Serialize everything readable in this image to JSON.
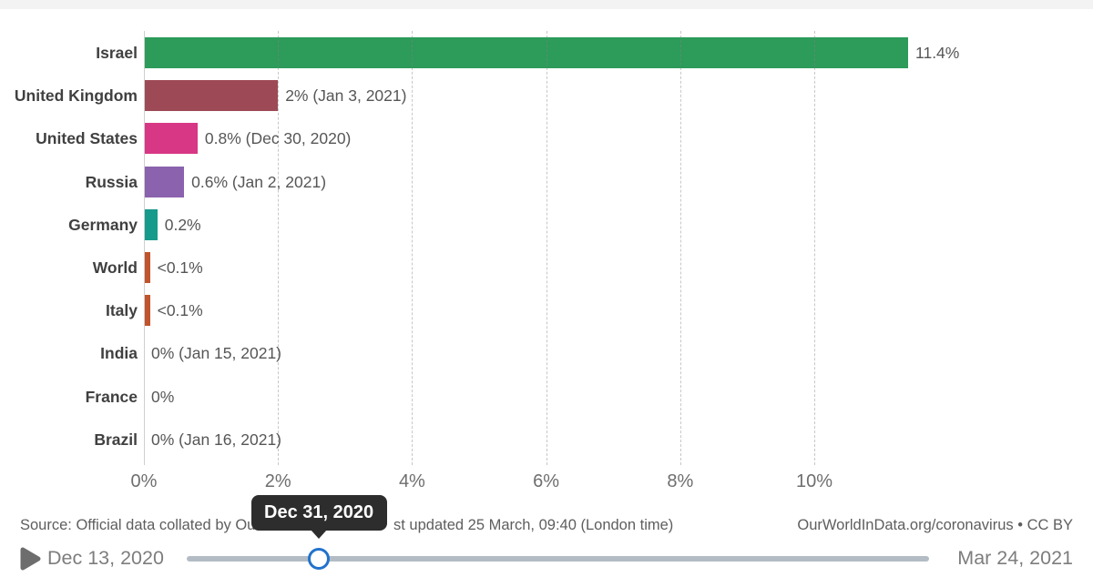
{
  "chart_data": {
    "type": "bar",
    "orientation": "horizontal",
    "unit": "%",
    "categories": [
      "Israel",
      "United Kingdom",
      "United States",
      "Russia",
      "Germany",
      "World",
      "Italy",
      "India",
      "France",
      "Brazil"
    ],
    "values": [
      11.4,
      2,
      0.8,
      0.6,
      0.2,
      0.09,
      0.09,
      0,
      0,
      0
    ],
    "value_labels": [
      "11.4%",
      "2% (Jan 3, 2021)",
      "0.8% (Dec 30, 2020)",
      "0.6% (Jan 2, 2021)",
      "0.2%",
      "<0.1%",
      "<0.1%",
      "0% (Jan 15, 2021)",
      "0%",
      "0% (Jan 16, 2021)"
    ],
    "bar_colors": [
      "#2D9B5A",
      "#9E4A56",
      "#D73784",
      "#8A62AD",
      "#169A8C",
      "#C0542D",
      "#C0542D",
      null,
      null,
      null
    ],
    "x_tick_labels": [
      "0%",
      "2%",
      "4%",
      "6%",
      "8%",
      "10%"
    ],
    "x_tick_values": [
      0,
      2,
      4,
      6,
      8,
      10
    ],
    "xlim": [
      0,
      13.9
    ],
    "grid": "dashed-vertical",
    "legend": "none",
    "title": ""
  },
  "footer": {
    "source_left": "Source: Official data collated by Ou",
    "source_right": "st updated 25 March, 09:40 (London time)",
    "attribution": "OurWorldInData.org/coronavirus • CC BY"
  },
  "timeline": {
    "start_label": "Dec 13, 2020",
    "end_label": "Mar 24, 2021",
    "tooltip_date": "Dec 31, 2020",
    "handle_fraction": 0.178,
    "play_icon": "play-triangle"
  },
  "colors": {
    "handle_ring": "#2272CC",
    "tooltip_bg": "#2D2D2D",
    "track": "#B3BCC4",
    "grid": "#D9D9D9",
    "axis_line": "#CFCFCF",
    "category_label": "#404040",
    "value_label": "#565656",
    "tick_label": "#6E6E6E",
    "footer_text": "#5E5E5E",
    "date_text": "#7D7D7D",
    "play_icon": "#6D6D6D"
  }
}
